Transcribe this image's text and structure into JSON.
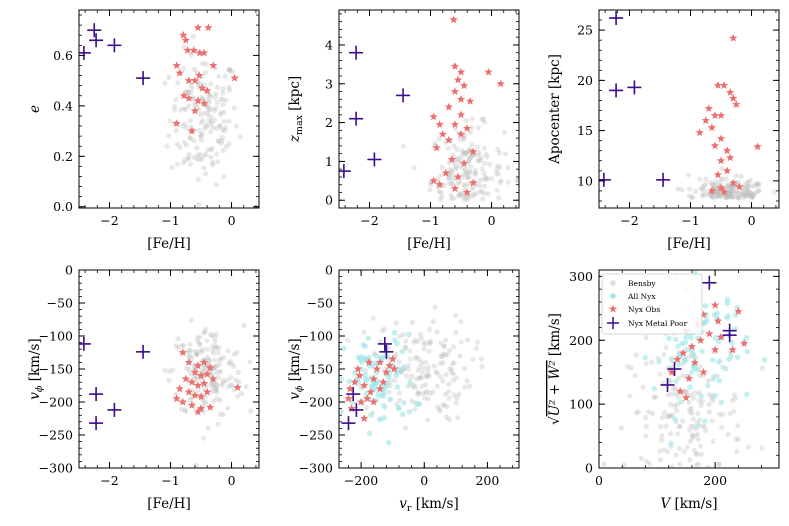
{
  "colors": {
    "bensby": "#bdbdbd",
    "all_nyx": "#9fe6e8",
    "nyx_obs": "#ee6f6f",
    "nyx_metal_poor": "#3c0a8a"
  },
  "legend": {
    "entries": [
      "Bensby",
      "All Nyx",
      "Nyx Obs",
      "Nyx Metal Poor"
    ],
    "placement": "top-left of panel 6"
  },
  "chart_data": [
    {
      "type": "scatter",
      "panel": 1,
      "xlabel": "[Fe/H]",
      "ylabel": "e",
      "xlim": [
        -2.5,
        0.45
      ],
      "ylim": [
        -0.005,
        0.78
      ],
      "xticks": [
        -2,
        -1,
        0
      ],
      "xtick_labels": [
        "−2",
        "−1",
        "0"
      ],
      "yticks": [
        0.0,
        0.2,
        0.4,
        0.6
      ],
      "ytick_labels": [
        "0.0",
        "0.2",
        "0.4",
        "0.6"
      ],
      "series": [
        {
          "name": "Nyx Metal Poor",
          "marker": "plus",
          "points": [
            [
              -2.42,
              0.61
            ],
            [
              -2.25,
              0.7
            ],
            [
              -2.22,
              0.66
            ],
            [
              -1.92,
              0.64
            ],
            [
              -1.45,
              0.51
            ]
          ]
        },
        {
          "name": "Nyx Obs",
          "marker": "star",
          "points": [
            [
              -0.79,
              0.68
            ],
            [
              -0.75,
              0.66
            ],
            [
              -0.72,
              0.62
            ],
            [
              -0.55,
              0.71
            ],
            [
              -0.38,
              0.71
            ],
            [
              -0.62,
              0.62
            ],
            [
              -0.52,
              0.61
            ],
            [
              -0.45,
              0.61
            ],
            [
              -0.9,
              0.56
            ],
            [
              -0.85,
              0.53
            ],
            [
              -0.7,
              0.5
            ],
            [
              -0.6,
              0.5
            ],
            [
              -0.53,
              0.52
            ],
            [
              -0.48,
              0.47
            ],
            [
              -0.78,
              0.44
            ],
            [
              -0.7,
              0.43
            ],
            [
              -0.55,
              0.42
            ],
            [
              -0.45,
              0.41
            ],
            [
              -0.6,
              0.38
            ],
            [
              -0.9,
              0.33
            ],
            [
              -0.65,
              0.3
            ],
            [
              0.05,
              0.51
            ],
            [
              -0.3,
              0.56
            ],
            [
              -0.4,
              0.46
            ]
          ]
        }
      ]
    },
    {
      "type": "scatter",
      "panel": 2,
      "xlabel": "[Fe/H]",
      "ylabel": "z_max [kpc]",
      "xlim": [
        -2.5,
        0.45
      ],
      "ylim": [
        -0.2,
        4.9
      ],
      "xticks": [
        -2,
        -1,
        0
      ],
      "xtick_labels": [
        "−2",
        "−1",
        "0"
      ],
      "yticks": [
        0,
        1,
        2,
        3,
        4
      ],
      "ytick_labels": [
        "0",
        "1",
        "2",
        "3",
        "4"
      ],
      "series": [
        {
          "name": "Nyx Metal Poor",
          "marker": "plus",
          "points": [
            [
              -2.42,
              0.75
            ],
            [
              -2.22,
              3.8
            ],
            [
              -2.22,
              2.1
            ],
            [
              -1.92,
              1.05
            ],
            [
              -1.45,
              2.7
            ]
          ]
        },
        {
          "name": "Nyx Obs",
          "marker": "star",
          "points": [
            [
              -0.62,
              4.65
            ],
            [
              -0.6,
              3.45
            ],
            [
              -0.5,
              3.3
            ],
            [
              -0.05,
              3.3
            ],
            [
              0.15,
              3.0
            ],
            [
              -0.55,
              3.1
            ],
            [
              -0.45,
              2.95
            ],
            [
              -0.6,
              2.8
            ],
            [
              -0.5,
              2.6
            ],
            [
              -0.35,
              2.55
            ],
            [
              -0.7,
              2.4
            ],
            [
              -0.5,
              2.2
            ],
            [
              -0.95,
              2.15
            ],
            [
              -0.85,
              1.95
            ],
            [
              -0.6,
              1.95
            ],
            [
              -0.4,
              1.85
            ],
            [
              -0.8,
              1.7
            ],
            [
              -0.5,
              1.7
            ],
            [
              -0.7,
              1.55
            ],
            [
              -0.9,
              1.35
            ],
            [
              -0.3,
              1.25
            ],
            [
              -0.65,
              1.05
            ],
            [
              -0.45,
              0.95
            ],
            [
              -0.75,
              0.7
            ],
            [
              -0.55,
              0.6
            ],
            [
              -0.95,
              0.5
            ],
            [
              -0.3,
              0.45
            ],
            [
              -0.6,
              0.3
            ],
            [
              -0.4,
              0.2
            ],
            [
              -0.85,
              0.4
            ]
          ]
        }
      ]
    },
    {
      "type": "scatter",
      "panel": 3,
      "xlabel": "[Fe/H]",
      "ylabel": "Apocenter [kpc]",
      "xlim": [
        -2.5,
        0.45
      ],
      "ylim": [
        7.3,
        27.0
      ],
      "xticks": [
        -2,
        -1,
        0
      ],
      "xtick_labels": [
        "−2",
        "−1",
        "0"
      ],
      "yticks": [
        10,
        15,
        20,
        25
      ],
      "ytick_labels": [
        "10",
        "15",
        "20",
        "25"
      ],
      "series": [
        {
          "name": "Nyx Metal Poor",
          "marker": "plus",
          "points": [
            [
              -2.42,
              10.1
            ],
            [
              -2.22,
              26.2
            ],
            [
              -2.22,
              19.0
            ],
            [
              -1.92,
              19.3
            ],
            [
              -1.45,
              10.1
            ]
          ]
        },
        {
          "name": "Nyx Obs",
          "marker": "star",
          "points": [
            [
              -0.3,
              24.2
            ],
            [
              -0.55,
              19.5
            ],
            [
              -0.45,
              19.5
            ],
            [
              -0.35,
              18.8
            ],
            [
              -0.3,
              18.2
            ],
            [
              -0.25,
              17.6
            ],
            [
              -0.7,
              17.2
            ],
            [
              -0.6,
              16.5
            ],
            [
              -0.75,
              16.0
            ],
            [
              -0.5,
              16.5
            ],
            [
              -0.65,
              15.3
            ],
            [
              -0.85,
              14.8
            ],
            [
              -0.5,
              14.2
            ],
            [
              -0.6,
              13.5
            ],
            [
              -0.4,
              13.0
            ],
            [
              -0.5,
              12.0
            ],
            [
              -0.35,
              12.3
            ],
            [
              -0.4,
              11.0
            ],
            [
              -0.55,
              10.6
            ],
            [
              -0.3,
              9.8
            ],
            [
              -0.5,
              9.3
            ],
            [
              -0.65,
              9.0
            ],
            [
              -0.2,
              9.4
            ],
            [
              0.1,
              13.4
            ],
            [
              -0.45,
              8.9
            ]
          ]
        }
      ]
    },
    {
      "type": "scatter",
      "panel": 4,
      "xlabel": "[Fe/H]",
      "ylabel": "v_phi [km/s]",
      "xlim": [
        -2.5,
        0.45
      ],
      "ylim": [
        -300,
        0
      ],
      "xticks": [
        -2,
        -1,
        0
      ],
      "xtick_labels": [
        "−2",
        "−1",
        "0"
      ],
      "yticks": [
        0,
        -50,
        -100,
        -150,
        -200,
        -250,
        -300
      ],
      "ytick_labels": [
        "0",
        "−50",
        "−100",
        "−150",
        "−200",
        "−250",
        "−300"
      ],
      "series": [
        {
          "name": "Nyx Metal Poor",
          "marker": "plus",
          "points": [
            [
              -2.42,
              -112
            ],
            [
              -2.22,
              -188
            ],
            [
              -2.22,
              -232
            ],
            [
              -1.92,
              -212
            ],
            [
              -1.45,
              -124
            ]
          ]
        },
        {
          "name": "Nyx Obs",
          "marker": "star",
          "points": [
            [
              -0.8,
              -125
            ],
            [
              -0.7,
              -140
            ],
            [
              -0.55,
              -145
            ],
            [
              -0.45,
              -140
            ],
            [
              -0.35,
              -148
            ],
            [
              -0.6,
              -155
            ],
            [
              -0.5,
              -160
            ],
            [
              -0.4,
              -158
            ],
            [
              -0.75,
              -165
            ],
            [
              -0.65,
              -170
            ],
            [
              -0.55,
              -175
            ],
            [
              -0.45,
              -172
            ],
            [
              -0.3,
              -165
            ],
            [
              -0.85,
              -180
            ],
            [
              -0.7,
              -185
            ],
            [
              -0.6,
              -190
            ],
            [
              -0.5,
              -192
            ],
            [
              -0.4,
              -185
            ],
            [
              0.1,
              -178
            ],
            [
              -0.8,
              -200
            ],
            [
              -0.65,
              -205
            ],
            [
              -0.5,
              -210
            ],
            [
              -0.35,
              -208
            ],
            [
              -0.55,
              -215
            ],
            [
              -0.9,
              -195
            ]
          ]
        }
      ]
    },
    {
      "type": "scatter",
      "panel": 5,
      "xlabel": "v_r [km/s]",
      "ylabel": "v_phi [km/s]",
      "xlim": [
        -270,
        300
      ],
      "ylim": [
        -300,
        0
      ],
      "xticks": [
        -200,
        0,
        200
      ],
      "xtick_labels": [
        "−200",
        "0",
        "200"
      ],
      "yticks": [
        0,
        -50,
        -100,
        -150,
        -200,
        -250,
        -300
      ],
      "ytick_labels": [
        "0",
        "−50",
        "−100",
        "−150",
        "−200",
        "−250",
        "−300"
      ],
      "series": [
        {
          "name": "Nyx Metal Poor",
          "marker": "plus",
          "points": [
            [
              -240,
              -232
            ],
            [
              -225,
              -188
            ],
            [
              -215,
              -212
            ],
            [
              -125,
              -112
            ],
            [
              -120,
              -124
            ]
          ]
        },
        {
          "name": "Nyx Obs",
          "marker": "star",
          "points": [
            [
              -235,
              -180
            ],
            [
              -220,
              -170
            ],
            [
              -205,
              -160
            ],
            [
              -190,
              -175
            ],
            [
              -180,
              -195
            ],
            [
              -170,
              -185
            ],
            [
              -160,
              -165
            ],
            [
              -150,
              -150
            ],
            [
              -140,
              -140
            ],
            [
              -130,
              -170
            ],
            [
              -120,
              -155
            ],
            [
              -110,
              -145
            ],
            [
              -100,
              -135
            ],
            [
              -200,
              -200
            ],
            [
              -230,
              -210
            ],
            [
              -190,
              -225
            ],
            [
              -240,
              -195
            ],
            [
              -160,
              -200
            ],
            [
              -140,
              -180
            ],
            [
              -95,
              -150
            ],
            [
              -175,
              -140
            ],
            [
              -210,
              -150
            ]
          ]
        }
      ]
    },
    {
      "type": "scatter",
      "panel": 6,
      "xlabel": "V [km/s]",
      "ylabel": "sqrt(U^2 + W^2) [km/s]",
      "xlim": [
        0,
        310
      ],
      "ylim": [
        0,
        310
      ],
      "xticks": [
        0,
        200
      ],
      "xtick_labels": [
        "0",
        "200"
      ],
      "yticks": [
        0,
        100,
        200,
        300
      ],
      "ytick_labels": [
        "0",
        "100",
        "200",
        "300"
      ],
      "series": [
        {
          "name": "Nyx Metal Poor",
          "marker": "plus",
          "points": [
            [
              190,
              290
            ],
            [
              225,
              215
            ],
            [
              225,
              208
            ],
            [
              130,
              155
            ],
            [
              118,
              130
            ]
          ]
        },
        {
          "name": "Nyx Obs",
          "marker": "star",
          "points": [
            [
              200,
              255
            ],
            [
              180,
              240
            ],
            [
              205,
              230
            ],
            [
              170,
              225
            ],
            [
              150,
              215
            ],
            [
              190,
              210
            ],
            [
              175,
              200
            ],
            [
              160,
              190
            ],
            [
              145,
              180
            ],
            [
              200,
              185
            ],
            [
              165,
              165
            ],
            [
              240,
              245
            ],
            [
              250,
              195
            ],
            [
              155,
              140
            ],
            [
              140,
              120
            ],
            [
              125,
              150
            ],
            [
              180,
              150
            ],
            [
              210,
              205
            ],
            [
              230,
              185
            ],
            [
              135,
              170
            ],
            [
              150,
              110
            ]
          ]
        }
      ]
    }
  ]
}
